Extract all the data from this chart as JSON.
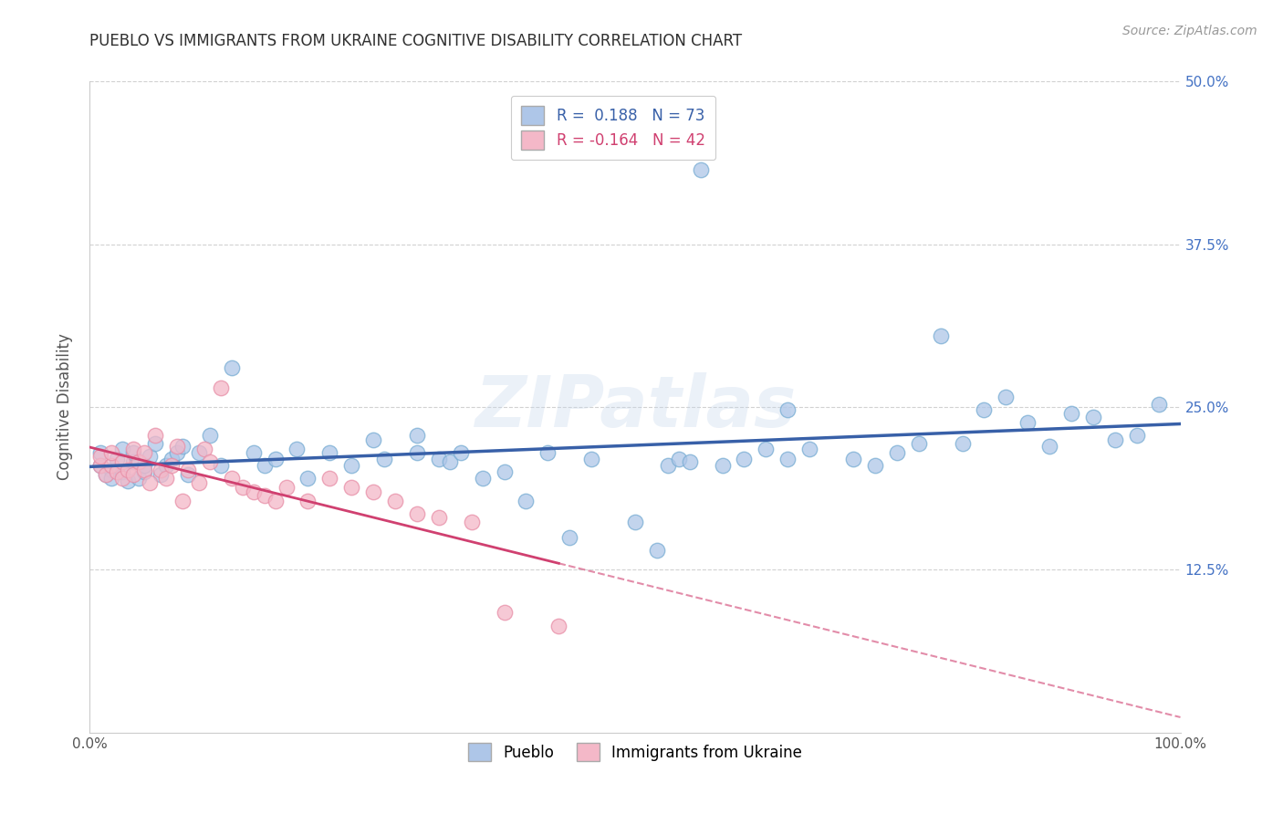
{
  "title": "PUEBLO VS IMMIGRANTS FROM UKRAINE COGNITIVE DISABILITY CORRELATION CHART",
  "source": "Source: ZipAtlas.com",
  "ylabel": "Cognitive Disability",
  "xlim": [
    0,
    1.0
  ],
  "ylim": [
    0,
    0.5
  ],
  "xtick_positions": [
    0.0,
    1.0
  ],
  "xtick_labels": [
    "0.0%",
    "100.0%"
  ],
  "ytick_values": [
    0.125,
    0.25,
    0.375,
    0.5
  ],
  "ytick_labels": [
    "12.5%",
    "25.0%",
    "37.5%",
    "50.0%"
  ],
  "watermark": "ZIPatlas",
  "blue_color": "#aec6e8",
  "blue_edge_color": "#7aaed4",
  "blue_line_color": "#3860a8",
  "pink_color": "#f4b8c8",
  "pink_edge_color": "#e890a8",
  "pink_line_color": "#d04070",
  "blue_scatter": [
    [
      0.01,
      0.205
    ],
    [
      0.01,
      0.215
    ],
    [
      0.015,
      0.198
    ],
    [
      0.02,
      0.202
    ],
    [
      0.02,
      0.195
    ],
    [
      0.025,
      0.21
    ],
    [
      0.03,
      0.218
    ],
    [
      0.03,
      0.2
    ],
    [
      0.035,
      0.193
    ],
    [
      0.04,
      0.208
    ],
    [
      0.04,
      0.215
    ],
    [
      0.045,
      0.195
    ],
    [
      0.05,
      0.2
    ],
    [
      0.05,
      0.205
    ],
    [
      0.055,
      0.212
    ],
    [
      0.06,
      0.222
    ],
    [
      0.065,
      0.198
    ],
    [
      0.07,
      0.205
    ],
    [
      0.075,
      0.21
    ],
    [
      0.08,
      0.215
    ],
    [
      0.085,
      0.22
    ],
    [
      0.09,
      0.198
    ],
    [
      0.1,
      0.215
    ],
    [
      0.11,
      0.228
    ],
    [
      0.12,
      0.205
    ],
    [
      0.13,
      0.28
    ],
    [
      0.15,
      0.215
    ],
    [
      0.16,
      0.205
    ],
    [
      0.17,
      0.21
    ],
    [
      0.19,
      0.218
    ],
    [
      0.2,
      0.195
    ],
    [
      0.22,
      0.215
    ],
    [
      0.24,
      0.205
    ],
    [
      0.26,
      0.225
    ],
    [
      0.27,
      0.21
    ],
    [
      0.3,
      0.228
    ],
    [
      0.3,
      0.215
    ],
    [
      0.32,
      0.21
    ],
    [
      0.33,
      0.208
    ],
    [
      0.34,
      0.215
    ],
    [
      0.36,
      0.195
    ],
    [
      0.38,
      0.2
    ],
    [
      0.4,
      0.178
    ],
    [
      0.42,
      0.215
    ],
    [
      0.44,
      0.15
    ],
    [
      0.46,
      0.21
    ],
    [
      0.5,
      0.162
    ],
    [
      0.52,
      0.14
    ],
    [
      0.53,
      0.205
    ],
    [
      0.54,
      0.21
    ],
    [
      0.55,
      0.208
    ],
    [
      0.56,
      0.432
    ],
    [
      0.58,
      0.205
    ],
    [
      0.6,
      0.21
    ],
    [
      0.62,
      0.218
    ],
    [
      0.64,
      0.248
    ],
    [
      0.64,
      0.21
    ],
    [
      0.66,
      0.218
    ],
    [
      0.7,
      0.21
    ],
    [
      0.72,
      0.205
    ],
    [
      0.74,
      0.215
    ],
    [
      0.76,
      0.222
    ],
    [
      0.78,
      0.305
    ],
    [
      0.8,
      0.222
    ],
    [
      0.82,
      0.248
    ],
    [
      0.84,
      0.258
    ],
    [
      0.86,
      0.238
    ],
    [
      0.88,
      0.22
    ],
    [
      0.9,
      0.245
    ],
    [
      0.92,
      0.242
    ],
    [
      0.94,
      0.225
    ],
    [
      0.96,
      0.228
    ],
    [
      0.98,
      0.252
    ]
  ],
  "pink_scatter": [
    [
      0.01,
      0.205
    ],
    [
      0.01,
      0.212
    ],
    [
      0.015,
      0.198
    ],
    [
      0.02,
      0.205
    ],
    [
      0.02,
      0.215
    ],
    [
      0.025,
      0.2
    ],
    [
      0.03,
      0.208
    ],
    [
      0.03,
      0.195
    ],
    [
      0.035,
      0.202
    ],
    [
      0.04,
      0.218
    ],
    [
      0.04,
      0.198
    ],
    [
      0.045,
      0.208
    ],
    [
      0.05,
      0.202
    ],
    [
      0.05,
      0.215
    ],
    [
      0.055,
      0.192
    ],
    [
      0.06,
      0.228
    ],
    [
      0.065,
      0.202
    ],
    [
      0.07,
      0.195
    ],
    [
      0.075,
      0.205
    ],
    [
      0.08,
      0.22
    ],
    [
      0.085,
      0.178
    ],
    [
      0.09,
      0.202
    ],
    [
      0.1,
      0.192
    ],
    [
      0.105,
      0.218
    ],
    [
      0.11,
      0.208
    ],
    [
      0.12,
      0.265
    ],
    [
      0.13,
      0.195
    ],
    [
      0.14,
      0.188
    ],
    [
      0.15,
      0.185
    ],
    [
      0.16,
      0.182
    ],
    [
      0.17,
      0.178
    ],
    [
      0.18,
      0.188
    ],
    [
      0.2,
      0.178
    ],
    [
      0.22,
      0.195
    ],
    [
      0.24,
      0.188
    ],
    [
      0.26,
      0.185
    ],
    [
      0.28,
      0.178
    ],
    [
      0.3,
      0.168
    ],
    [
      0.32,
      0.165
    ],
    [
      0.35,
      0.162
    ],
    [
      0.38,
      0.092
    ],
    [
      0.43,
      0.082
    ]
  ],
  "background_color": "#ffffff",
  "grid_color": "#cccccc",
  "title_color": "#303030",
  "axis_label_color": "#555555",
  "tick_color": "#4472c4"
}
